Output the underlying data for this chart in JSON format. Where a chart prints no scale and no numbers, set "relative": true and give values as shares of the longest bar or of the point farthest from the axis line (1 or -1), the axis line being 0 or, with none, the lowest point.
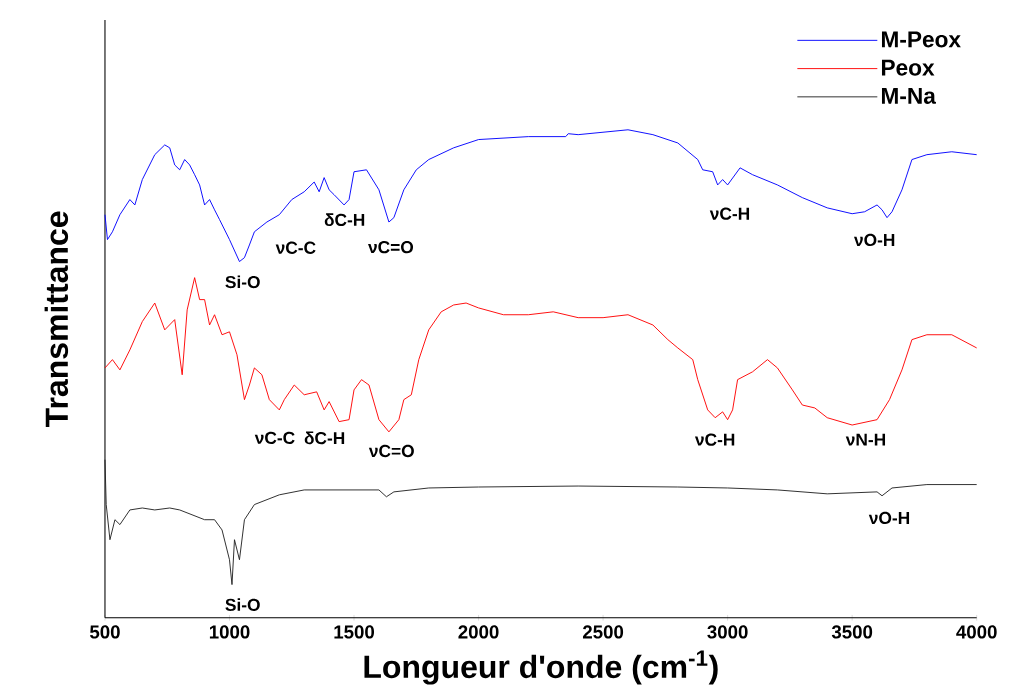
{
  "chart_data": {
    "type": "line",
    "relative": true,
    "xlabel": "Longueur d'onde (cm$^{-1}$)",
    "ylabel": "Transmittance",
    "xlim": [
      500,
      4000
    ],
    "xticks": [
      500,
      1000,
      1500,
      2000,
      2500,
      3000,
      3500,
      4000
    ],
    "tick_labels": "x",
    "legend": "top right",
    "grid": false,
    "series": [
      {
        "name": "M-Peox",
        "color": "#0000ff",
        "x": [
          500,
          510,
          530,
          560,
          600,
          620,
          650,
          700,
          740,
          760,
          780,
          800,
          820,
          840,
          860,
          880,
          900,
          920,
          940,
          960,
          1000,
          1040,
          1060,
          1080,
          1100,
          1150,
          1200,
          1250,
          1300,
          1340,
          1360,
          1380,
          1400,
          1420,
          1460,
          1480,
          1500,
          1550,
          1600,
          1640,
          1660,
          1700,
          1750,
          1800,
          1900,
          2000,
          2200,
          2350,
          2360,
          2400,
          2600,
          2700,
          2800,
          2880,
          2900,
          2940,
          2960,
          2980,
          3000,
          3050,
          3100,
          3200,
          3300,
          3400,
          3500,
          3550,
          3600,
          3620,
          3640,
          3660,
          3700,
          3740,
          3800,
          3900,
          4000
        ],
        "values": [
          0.826,
          0.775,
          0.791,
          0.826,
          0.857,
          0.846,
          0.898,
          0.949,
          0.969,
          0.963,
          0.928,
          0.918,
          0.939,
          0.928,
          0.908,
          0.887,
          0.846,
          0.857,
          0.836,
          0.816,
          0.775,
          0.73,
          0.738,
          0.764,
          0.791,
          0.811,
          0.826,
          0.857,
          0.873,
          0.893,
          0.873,
          0.902,
          0.877,
          0.867,
          0.846,
          0.857,
          0.914,
          0.918,
          0.877,
          0.811,
          0.82,
          0.877,
          0.918,
          0.939,
          0.963,
          0.98,
          0.986,
          0.986,
          0.992,
          0.99,
          1.0,
          0.99,
          0.973,
          0.939,
          0.918,
          0.914,
          0.887,
          0.898,
          0.887,
          0.922,
          0.908,
          0.887,
          0.861,
          0.84,
          0.828,
          0.832,
          0.846,
          0.836,
          0.82,
          0.832,
          0.877,
          0.939,
          0.949,
          0.955,
          0.949
        ]
      },
      {
        "name": "Peox",
        "color": "#ff0000",
        "x": [
          500,
          530,
          560,
          600,
          650,
          700,
          740,
          780,
          810,
          830,
          860,
          880,
          900,
          920,
          940,
          970,
          1000,
          1030,
          1060,
          1080,
          1100,
          1130,
          1160,
          1200,
          1220,
          1260,
          1300,
          1350,
          1380,
          1400,
          1440,
          1480,
          1500,
          1530,
          1560,
          1600,
          1640,
          1680,
          1700,
          1730,
          1760,
          1800,
          1850,
          1900,
          1950,
          2000,
          2100,
          2200,
          2300,
          2400,
          2500,
          2600,
          2700,
          2760,
          2800,
          2860,
          2880,
          2920,
          2950,
          2980,
          3000,
          3020,
          3040,
          3100,
          3160,
          3200,
          3260,
          3300,
          3350,
          3400,
          3500,
          3600,
          3650,
          3700,
          3740,
          3800,
          3900,
          4000
        ],
        "values": [
          0.512,
          0.529,
          0.508,
          0.549,
          0.607,
          0.645,
          0.59,
          0.611,
          0.498,
          0.631,
          0.697,
          0.652,
          0.652,
          0.6,
          0.621,
          0.58,
          0.586,
          0.539,
          0.447,
          0.477,
          0.512,
          0.498,
          0.447,
          0.426,
          0.447,
          0.477,
          0.457,
          0.463,
          0.426,
          0.443,
          0.402,
          0.406,
          0.467,
          0.488,
          0.477,
          0.406,
          0.381,
          0.406,
          0.447,
          0.457,
          0.529,
          0.59,
          0.627,
          0.641,
          0.645,
          0.635,
          0.621,
          0.621,
          0.627,
          0.615,
          0.615,
          0.621,
          0.6,
          0.57,
          0.553,
          0.529,
          0.488,
          0.426,
          0.41,
          0.422,
          0.406,
          0.426,
          0.488,
          0.504,
          0.529,
          0.512,
          0.467,
          0.436,
          0.43,
          0.41,
          0.395,
          0.406,
          0.447,
          0.508,
          0.57,
          0.58,
          0.58,
          0.553
        ]
      },
      {
        "name": "M-Na",
        "color": "#222222",
        "x": [
          500,
          505,
          520,
          540,
          560,
          600,
          650,
          700,
          760,
          800,
          850,
          900,
          940,
          970,
          1000,
          1010,
          1020,
          1040,
          1060,
          1100,
          1200,
          1300,
          1400,
          1500,
          1600,
          1630,
          1660,
          1800,
          2000,
          2400,
          2800,
          3000,
          3200,
          3400,
          3600,
          3620,
          3660,
          3800,
          4000
        ],
        "values": [
          0.324,
          0.232,
          0.16,
          0.201,
          0.191,
          0.221,
          0.225,
          0.221,
          0.225,
          0.221,
          0.211,
          0.201,
          0.201,
          0.18,
          0.119,
          0.068,
          0.16,
          0.119,
          0.201,
          0.232,
          0.252,
          0.262,
          0.262,
          0.262,
          0.262,
          0.248,
          0.258,
          0.266,
          0.268,
          0.27,
          0.268,
          0.266,
          0.262,
          0.254,
          0.258,
          0.25,
          0.266,
          0.273,
          0.273
        ]
      }
    ],
    "annotations": [
      "Si-O",
      "νC-C",
      "δC-H",
      "νC=O",
      "νC-H",
      "νO-H",
      "νC-C",
      "δC-H",
      "νC=O",
      "νC-H",
      "νN-H",
      "νO-H",
      "Si-O"
    ]
  }
}
